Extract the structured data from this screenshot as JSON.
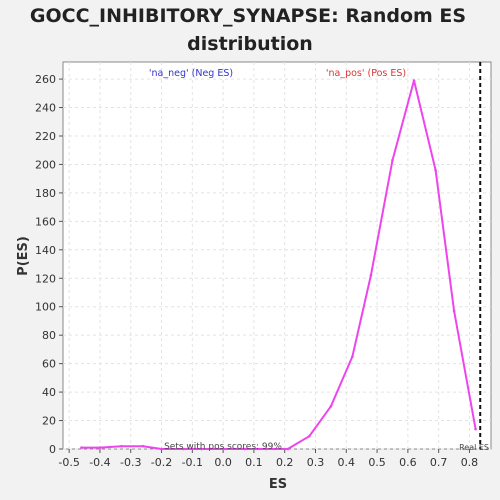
{
  "chart_data": {
    "type": "line",
    "title_lines": [
      "GOCC_INHIBITORY_SYNAPSE: Random ES",
      "distribution"
    ],
    "xlabel": "ES",
    "ylabel": "P(ES)",
    "xlim": [
      -0.52,
      0.87
    ],
    "ylim": [
      0,
      272
    ],
    "xticks": [
      -0.5,
      -0.4,
      -0.3,
      -0.2,
      -0.1,
      0.0,
      0.1,
      0.2,
      0.3,
      0.4,
      0.5,
      0.6,
      0.7,
      0.8
    ],
    "xtick_labels": [
      "-0.5",
      "-0.4",
      "-0.3",
      "-0.2",
      "-0.1",
      "0.0",
      "0.1",
      "0.2",
      "0.3",
      "0.4",
      "0.5",
      "0.6",
      "0.7",
      "0.8"
    ],
    "yticks": [
      0,
      20,
      40,
      60,
      80,
      100,
      120,
      140,
      160,
      180,
      200,
      220,
      240,
      260
    ],
    "ytick_labels": [
      "0",
      "20",
      "40",
      "60",
      "80",
      "100",
      "120",
      "140",
      "160",
      "180",
      "200",
      "220",
      "240",
      "260"
    ],
    "grid": true,
    "series": [
      {
        "color": "#ee44ee",
        "x": [
          -0.46,
          -0.4,
          -0.33,
          -0.26,
          -0.2,
          -0.13,
          -0.07,
          0.0,
          0.07,
          0.14,
          0.21,
          0.28,
          0.35,
          0.42,
          0.48,
          0.55,
          0.62,
          0.69,
          0.75,
          0.82
        ],
        "y": [
          1,
          1,
          2,
          2,
          0,
          0,
          0,
          0,
          0,
          0,
          0,
          9,
          30,
          65,
          122,
          203,
          259,
          196,
          97,
          14
        ]
      }
    ],
    "real_es": 0.835,
    "real_es_label": "Real ES",
    "neg_label": "'na_neg' (Neg ES)",
    "neg_color": "#3333cc",
    "pos_label": "'na_pos' (Pos ES)",
    "pos_color": "#dd3333",
    "footnote": "Sets with pos scores: 99%"
  }
}
